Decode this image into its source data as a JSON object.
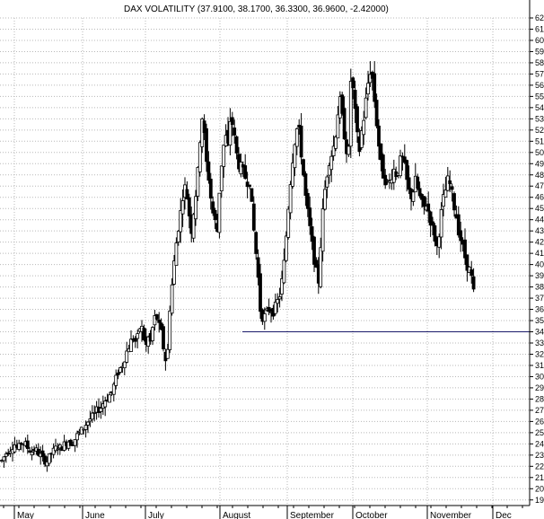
{
  "chart_data": {
    "type": "candlestick",
    "title": "DAX VOLATILITY (37.9100, 38.1700, 36.3300, 36.9600, -2.42000)",
    "ylim": [
      18.5,
      62
    ],
    "y_ticks": [
      19,
      20,
      21,
      22,
      23,
      24,
      25,
      26,
      27,
      28,
      29,
      30,
      31,
      32,
      33,
      34,
      35,
      36,
      37,
      38,
      39,
      40,
      41,
      42,
      43,
      44,
      45,
      46,
      47,
      48,
      49,
      50,
      51,
      52,
      53,
      54,
      55,
      56,
      57,
      58,
      59,
      60,
      61,
      62
    ],
    "x_months": [
      "May",
      "June",
      "July",
      "August",
      "September",
      "October",
      "November",
      "Dec"
    ],
    "grid": true,
    "support_line": {
      "value": 34.0
    },
    "close_path": [
      [
        0,
        22.5
      ],
      [
        5,
        23.2
      ],
      [
        9,
        23.5
      ],
      [
        14,
        24.0
      ],
      [
        18,
        23.5
      ],
      [
        22,
        24.2
      ],
      [
        26,
        24.0
      ],
      [
        30,
        23.5
      ],
      [
        34,
        23.3
      ],
      [
        37,
        23.6
      ],
      [
        40,
        23.2
      ],
      [
        43,
        23.0
      ],
      [
        46,
        22.6
      ],
      [
        50,
        22.4
      ],
      [
        54,
        23.0
      ],
      [
        58,
        23.4
      ],
      [
        62,
        23.8
      ],
      [
        66,
        23.6
      ],
      [
        70,
        24.0
      ],
      [
        74,
        24.3
      ],
      [
        78,
        24.0
      ],
      [
        82,
        24.5
      ],
      [
        86,
        25.0
      ],
      [
        90,
        25.3
      ],
      [
        94,
        25.8
      ],
      [
        98,
        26.2
      ],
      [
        102,
        26.5
      ],
      [
        106,
        27.0
      ],
      [
        110,
        27.2
      ],
      [
        114,
        27.8
      ],
      [
        118,
        28.2
      ],
      [
        122,
        28.5
      ],
      [
        126,
        29.5
      ],
      [
        130,
        30.5
      ],
      [
        134,
        31.0
      ],
      [
        138,
        32.0
      ],
      [
        142,
        32.8
      ],
      [
        146,
        33.5
      ],
      [
        150,
        33.0
      ],
      [
        154,
        34.5
      ],
      [
        157,
        34.2
      ],
      [
        160,
        32.5
      ],
      [
        163,
        33.5
      ],
      [
        166,
        33.0
      ],
      [
        169,
        35.0
      ],
      [
        172,
        35.5
      ],
      [
        175,
        34.5
      ],
      [
        178,
        33.8
      ],
      [
        181,
        32.0
      ],
      [
        184,
        31.0
      ],
      [
        187,
        36.0
      ],
      [
        190,
        38.5
      ],
      [
        193,
        41.0
      ],
      [
        196,
        43.0
      ],
      [
        199,
        44.5
      ],
      [
        202,
        46.5
      ],
      [
        205,
        47.0
      ],
      [
        208,
        45.0
      ],
      [
        211,
        43.0
      ],
      [
        214,
        45.0
      ],
      [
        217,
        47.0
      ],
      [
        220,
        49.5
      ],
      [
        222,
        54.0
      ],
      [
        225,
        52.0
      ],
      [
        228,
        49.0
      ],
      [
        231,
        47.5
      ],
      [
        234,
        45.0
      ],
      [
        237,
        44.0
      ],
      [
        240,
        43.0
      ],
      [
        243,
        47.5
      ],
      [
        246,
        50.0
      ],
      [
        249,
        51.5
      ],
      [
        252,
        50.5
      ],
      [
        255,
        53.5
      ],
      [
        258,
        52.0
      ],
      [
        261,
        50.0
      ],
      [
        264,
        49.0
      ],
      [
        267,
        48.5
      ],
      [
        270,
        48.0
      ],
      [
        273,
        47.5
      ],
      [
        276,
        47.5
      ],
      [
        279,
        44.5
      ],
      [
        282,
        42.0
      ],
      [
        285,
        39.5
      ],
      [
        288,
        36.0
      ],
      [
        291,
        35.2
      ],
      [
        294,
        35.5
      ],
      [
        297,
        36.0
      ],
      [
        300,
        36.0
      ],
      [
        303,
        35.8
      ],
      [
        306,
        36.5
      ],
      [
        309,
        37.0
      ],
      [
        312,
        38.5
      ],
      [
        315,
        40.5
      ],
      [
        318,
        44.0
      ],
      [
        321,
        47.0
      ],
      [
        324,
        49.5
      ],
      [
        327,
        51.5
      ],
      [
        330,
        52.5
      ],
      [
        333,
        50.5
      ],
      [
        336,
        48.0
      ],
      [
        339,
        45.5
      ],
      [
        342,
        44.0
      ],
      [
        345,
        42.0
      ],
      [
        348,
        40.5
      ],
      [
        351,
        39.0
      ],
      [
        353,
        38.5
      ],
      [
        356,
        43.0
      ],
      [
        359,
        46.0
      ],
      [
        362,
        48.0
      ],
      [
        365,
        49.5
      ],
      [
        368,
        50.0
      ],
      [
        371,
        51.0
      ],
      [
        374,
        53.5
      ],
      [
        377,
        54.5
      ],
      [
        380,
        52.5
      ],
      [
        383,
        51.0
      ],
      [
        386,
        49.0
      ],
      [
        389,
        57.0
      ],
      [
        392,
        55.0
      ],
      [
        395,
        52.0
      ],
      [
        398,
        50.0
      ],
      [
        401,
        52.0
      ],
      [
        404,
        53.5
      ],
      [
        407,
        55.5
      ],
      [
        410,
        57.5
      ],
      [
        413,
        56.5
      ],
      [
        416,
        54.0
      ],
      [
        419,
        51.5
      ],
      [
        422,
        49.0
      ],
      [
        425,
        48.0
      ],
      [
        428,
        47.5
      ],
      [
        431,
        47.0
      ],
      [
        434,
        48.0
      ],
      [
        437,
        48.5
      ],
      [
        440,
        48.0
      ],
      [
        443,
        49.0
      ],
      [
        446,
        49.5
      ],
      [
        449,
        48.5
      ],
      [
        452,
        47.0
      ],
      [
        455,
        46.0
      ],
      [
        458,
        46.5
      ],
      [
        461,
        47.5
      ],
      [
        464,
        46.5
      ],
      [
        467,
        45.5
      ],
      [
        470,
        45.0
      ],
      [
        473,
        45.5
      ],
      [
        476,
        44.5
      ],
      [
        479,
        43.5
      ],
      [
        482,
        42.5
      ],
      [
        485,
        41.5
      ],
      [
        488,
        43.5
      ],
      [
        491,
        45.5
      ],
      [
        494,
        46.5
      ],
      [
        497,
        47.5
      ],
      [
        500,
        47.0
      ],
      [
        503,
        45.5
      ],
      [
        506,
        44.5
      ],
      [
        509,
        43.0
      ],
      [
        512,
        42.0
      ],
      [
        515,
        41.0
      ],
      [
        518,
        40.0
      ],
      [
        521,
        39.5
      ],
      [
        524,
        38.5
      ],
      [
        526,
        37.2
      ]
    ]
  }
}
